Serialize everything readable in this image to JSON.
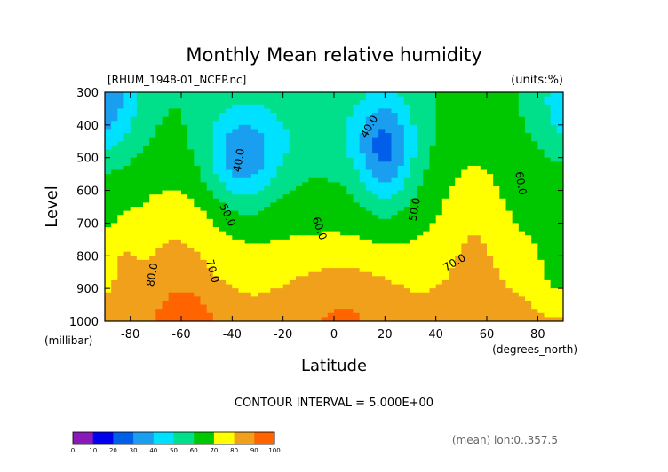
{
  "chart_data": {
    "type": "heatmap",
    "title": "Monthly Mean relative humidity",
    "subtitle_left": "[RHUM_1948-01_NCEP.nc]",
    "subtitle_right": "(units:%)",
    "xlabel": "Latitude",
    "xunits": "(degrees_north)",
    "ylabel": "Level",
    "yunits": "(millibar)",
    "xlim": [
      -90,
      90
    ],
    "ylim": [
      1000,
      300
    ],
    "x_ticks": [
      "-80",
      "-60",
      "-40",
      "-20",
      "0",
      "20",
      "40",
      "60",
      "80"
    ],
    "x_tick_values": [
      -80,
      -60,
      -40,
      -20,
      0,
      20,
      40,
      60,
      80
    ],
    "y_ticks": [
      "300",
      "400",
      "500",
      "600",
      "700",
      "800",
      "900",
      "1000"
    ],
    "y_tick_values": [
      300,
      400,
      500,
      600,
      700,
      800,
      900,
      1000
    ],
    "contour_interval_text": "CONTOUR INTERVAL = 5.000E+00",
    "footer_note": "(mean) lon:0..357.5",
    "contour_labels": [
      {
        "text": "40.0",
        "lat": -36,
        "lev": 510,
        "rot": -80
      },
      {
        "text": "40.0",
        "lat": 15,
        "lev": 410,
        "rot": -60
      },
      {
        "text": "50.0",
        "lat": -43,
        "lev": 680,
        "rot": 65
      },
      {
        "text": "50.0",
        "lat": 33,
        "lev": 660,
        "rot": -80
      },
      {
        "text": "60.0",
        "lat": -7,
        "lev": 720,
        "rot": 70
      },
      {
        "text": "60.0",
        "lat": 72,
        "lev": 580,
        "rot": 80
      },
      {
        "text": "70.0",
        "lat": -49,
        "lev": 850,
        "rot": 75
      },
      {
        "text": "70.0",
        "lat": 48,
        "lev": 830,
        "rot": -30
      },
      {
        "text": "80.0",
        "lat": -70,
        "lev": 860,
        "rot": -80
      }
    ],
    "colorbar": {
      "levels": [
        0,
        10,
        20,
        30,
        40,
        50,
        60,
        70,
        80,
        90,
        100
      ],
      "labels": [
        "0",
        "10",
        "20",
        "30",
        "40",
        "50",
        "60",
        "70",
        "80",
        "90",
        "100"
      ],
      "colors": [
        "#8a1ab8",
        "#0000ee",
        "#005ee8",
        "#1a9ff0",
        "#00e0ff",
        "#00e08a",
        "#00c800",
        "#ffff00",
        "#f0a01a",
        "#ff6400",
        "#ff0000"
      ]
    },
    "grid": false,
    "legend": "bottom-left colorbar"
  }
}
